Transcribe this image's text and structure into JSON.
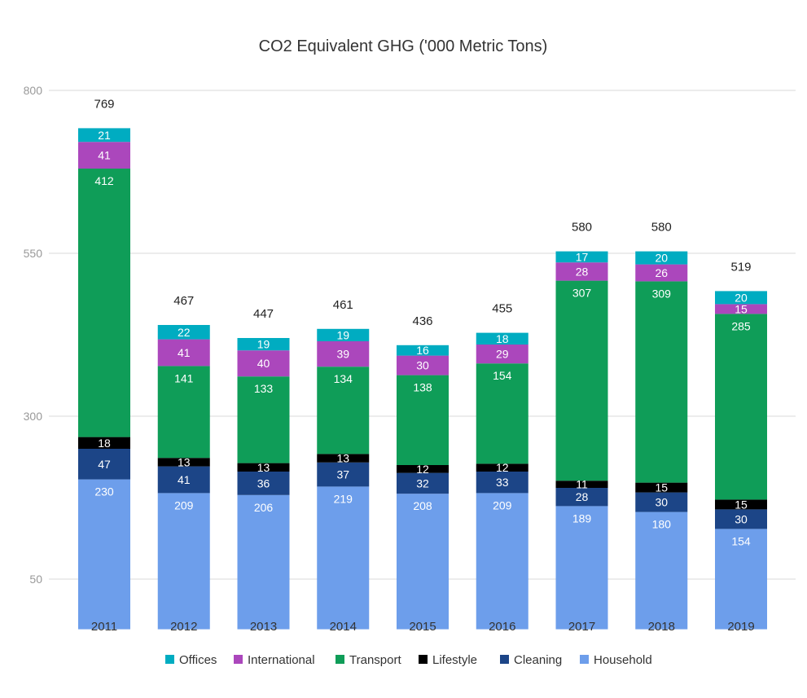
{
  "chart_data": {
    "type": "bar",
    "stacked": true,
    "title": "CO2 Equivalent GHG ('000 Metric Tons)",
    "xlabel": "",
    "ylabel": "",
    "categories": [
      "2011",
      "2012",
      "2013",
      "2014",
      "2015",
      "2016",
      "2017",
      "2018",
      "2019"
    ],
    "y_axis": {
      "ticks": [
        50,
        300,
        550,
        800
      ],
      "ylim": [
        -27,
        833
      ],
      "grid": true
    },
    "totals": [
      769,
      467,
      447,
      461,
      436,
      455,
      580,
      580,
      519
    ],
    "series": [
      {
        "name": "Household",
        "color": "#6d9eeb",
        "label_color": "#ffffff",
        "values": [
          230,
          209,
          206,
          219,
          208,
          209,
          189,
          180,
          154
        ]
      },
      {
        "name": "Cleaning",
        "color": "#1c4587",
        "label_color": "#ffffff",
        "values": [
          47,
          41,
          36,
          37,
          32,
          33,
          28,
          30,
          30
        ]
      },
      {
        "name": "Lifestyle",
        "color": "#000000",
        "label_color": "#ffffff",
        "values": [
          18,
          13,
          13,
          13,
          12,
          12,
          11,
          15,
          15
        ]
      },
      {
        "name": "Transport",
        "color": "#0f9d58",
        "label_color": "#ffffff",
        "values": [
          412,
          141,
          133,
          134,
          138,
          154,
          307,
          309,
          285
        ]
      },
      {
        "name": "International",
        "color": "#ab47bc",
        "label_color": "#ffffff",
        "values": [
          41,
          41,
          40,
          39,
          30,
          29,
          28,
          26,
          15
        ]
      },
      {
        "name": "Offices",
        "color": "#00acc1",
        "label_color": "#ffffff",
        "values": [
          21,
          22,
          19,
          19,
          16,
          18,
          17,
          20,
          20
        ]
      }
    ],
    "legend": {
      "position": "bottom",
      "order": [
        "Offices",
        "International",
        "Transport",
        "Lifestyle",
        "Cleaning",
        "Household"
      ]
    }
  }
}
